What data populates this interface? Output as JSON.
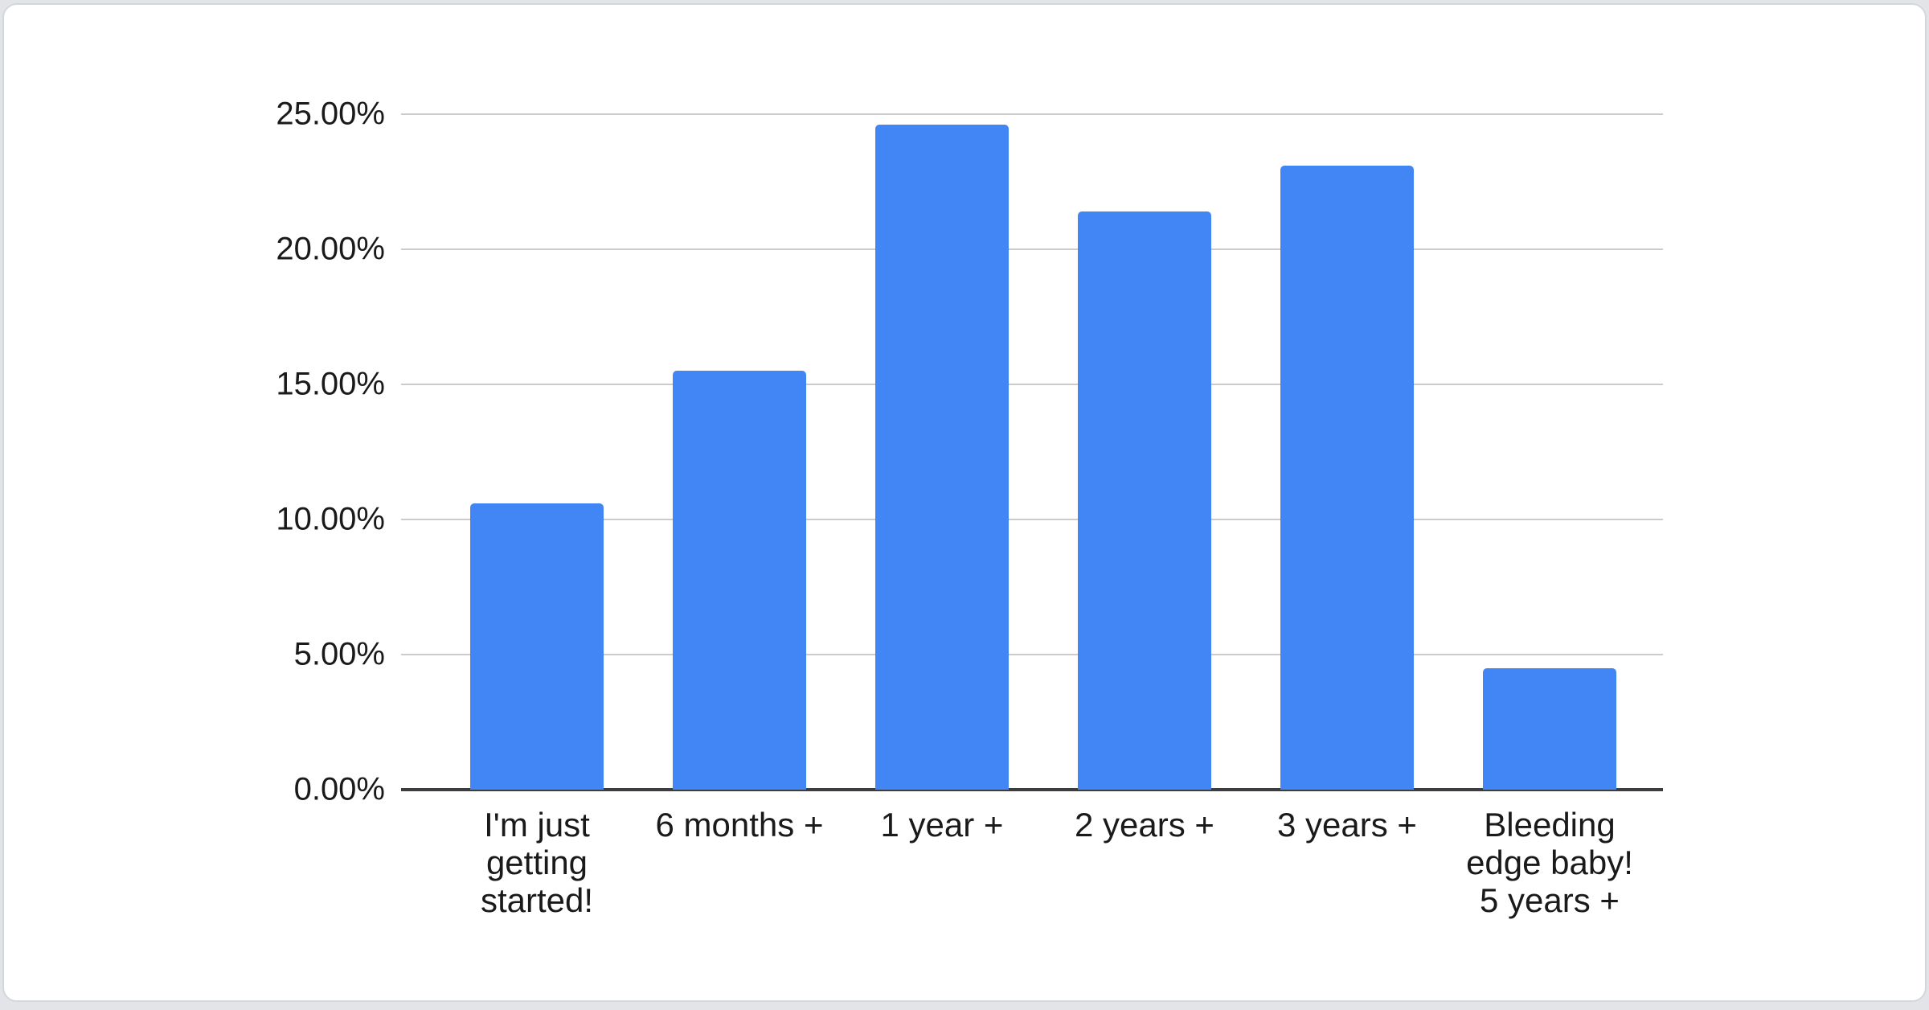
{
  "page": {
    "background_color": "#e2e4e7",
    "card_background_color": "#ffffff",
    "card_border_color": "#d3d6da"
  },
  "chart_data": {
    "type": "bar",
    "title": "",
    "xlabel": "",
    "ylabel": "",
    "legend": "none",
    "grid": "on",
    "categories": [
      "I'm just\ngetting\nstarted!",
      "6 months +",
      "1 year +",
      "2 years +",
      "3 years +",
      "Bleeding\nedge baby!\n5 years +"
    ],
    "values": [
      10.6,
      15.5,
      24.6,
      21.4,
      23.1,
      4.5
    ],
    "value_unit": "%",
    "ylim": [
      0,
      25
    ],
    "y_tick_values": [
      0,
      5,
      10,
      15,
      20,
      25
    ],
    "y_tick_labels": [
      "0.00%",
      "5.00%",
      "10.00%",
      "15.00%",
      "20.00%",
      "25.00%"
    ],
    "bar_color": "#4285f4",
    "gridline_color": "#cccccc",
    "axis_line_color": "#3b3d40",
    "label_color": "#1a1a1a"
  }
}
